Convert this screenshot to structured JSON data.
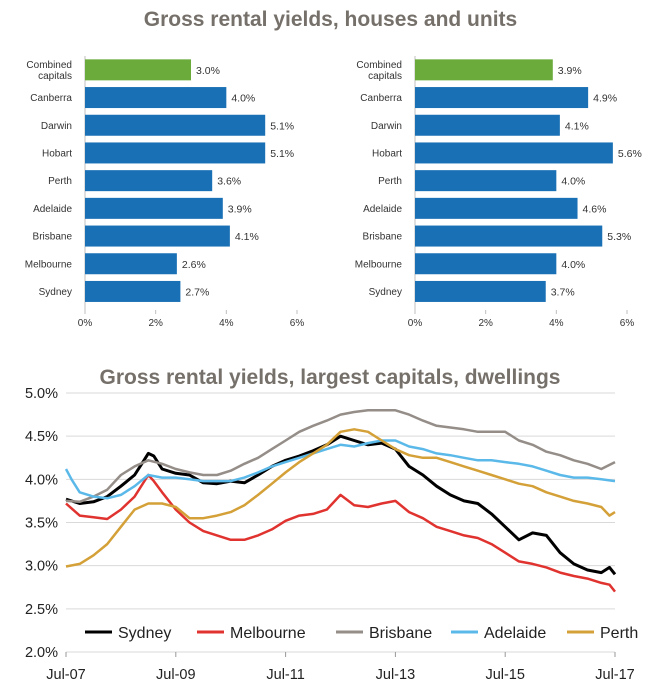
{
  "page_title": "Gross rental yields, houses and units",
  "colors": {
    "combined": "#6aab3c",
    "city": "#1a70b5",
    "grid": "#d9d9d9"
  },
  "chart_data": [
    {
      "type": "bar",
      "orientation": "horizontal",
      "panel": "houses",
      "categories": [
        "Combined capitals",
        "Canberra",
        "Darwin",
        "Hobart",
        "Perth",
        "Adelaide",
        "Brisbane",
        "Melbourne",
        "Sydney"
      ],
      "category_lines": [
        [
          "Combined",
          "capitals"
        ],
        [
          "Canberra"
        ],
        [
          "Darwin"
        ],
        [
          "Hobart"
        ],
        [
          "Perth"
        ],
        [
          "Adelaide"
        ],
        [
          "Brisbane"
        ],
        [
          "Melbourne"
        ],
        [
          "Sydney"
        ]
      ],
      "values": [
        3.0,
        4.0,
        5.1,
        5.1,
        3.6,
        3.9,
        4.1,
        2.6,
        2.7
      ],
      "value_labels": [
        "3.0%",
        "4.0%",
        "5.1%",
        "5.1%",
        "3.6%",
        "3.9%",
        "4.1%",
        "2.6%",
        "2.7%"
      ],
      "xlim": [
        0,
        6
      ],
      "x_ticks": [
        0,
        2,
        4,
        6
      ],
      "x_tick_labels": [
        "0%",
        "2%",
        "4%",
        "6%"
      ]
    },
    {
      "type": "bar",
      "orientation": "horizontal",
      "panel": "units",
      "categories": [
        "Combined capitals",
        "Canberra",
        "Darwin",
        "Hobart",
        "Perth",
        "Adelaide",
        "Brisbane",
        "Melbourne",
        "Sydney"
      ],
      "category_lines": [
        [
          "Combined",
          "capitals"
        ],
        [
          "Canberra"
        ],
        [
          "Darwin"
        ],
        [
          "Hobart"
        ],
        [
          "Perth"
        ],
        [
          "Adelaide"
        ],
        [
          "Brisbane"
        ],
        [
          "Melbourne"
        ],
        [
          "Sydney"
        ]
      ],
      "values": [
        3.9,
        4.9,
        4.1,
        5.6,
        4.0,
        4.6,
        5.3,
        4.0,
        3.7
      ],
      "value_labels": [
        "3.9%",
        "4.9%",
        "4.1%",
        "5.6%",
        "4.0%",
        "4.6%",
        "5.3%",
        "4.0%",
        "3.7%"
      ],
      "xlim": [
        0,
        6
      ],
      "x_ticks": [
        0,
        2,
        4,
        6
      ],
      "x_tick_labels": [
        "0%",
        "2%",
        "4%",
        "6%"
      ]
    },
    {
      "type": "line",
      "title": "Gross rental yields, largest capitals, dwellings",
      "x_range": [
        2007.5,
        2017.5
      ],
      "x_ticks": [
        2007.5,
        2009.5,
        2011.5,
        2013.5,
        2015.5,
        2017.5
      ],
      "x_tick_labels": [
        "Jul-07",
        "Jul-09",
        "Jul-11",
        "Jul-13",
        "Jul-15",
        "Jul-17"
      ],
      "ylim": [
        2.0,
        5.0
      ],
      "y_ticks": [
        2.0,
        2.5,
        3.0,
        3.5,
        4.0,
        4.5,
        5.0
      ],
      "y_tick_labels": [
        "2.0%",
        "2.5%",
        "3.0%",
        "3.5%",
        "4.0%",
        "4.5%",
        "5.0%"
      ],
      "series": [
        {
          "name": "Sydney",
          "color": "#000000",
          "points": [
            [
              2007.5,
              3.77
            ],
            [
              2007.75,
              3.72
            ],
            [
              2008.0,
              3.74
            ],
            [
              2008.25,
              3.8
            ],
            [
              2008.5,
              3.92
            ],
            [
              2008.75,
              4.05
            ],
            [
              2008.9,
              4.2
            ],
            [
              2009.0,
              4.3
            ],
            [
              2009.1,
              4.27
            ],
            [
              2009.25,
              4.12
            ],
            [
              2009.5,
              4.07
            ],
            [
              2009.75,
              4.05
            ],
            [
              2010.0,
              3.96
            ],
            [
              2010.25,
              3.95
            ],
            [
              2010.5,
              3.98
            ],
            [
              2010.75,
              3.96
            ],
            [
              2011.0,
              4.05
            ],
            [
              2011.25,
              4.15
            ],
            [
              2011.5,
              4.22
            ],
            [
              2011.75,
              4.27
            ],
            [
              2012.0,
              4.33
            ],
            [
              2012.25,
              4.4
            ],
            [
              2012.5,
              4.5
            ],
            [
              2012.75,
              4.45
            ],
            [
              2013.0,
              4.4
            ],
            [
              2013.25,
              4.42
            ],
            [
              2013.5,
              4.35
            ],
            [
              2013.75,
              4.15
            ],
            [
              2014.0,
              4.05
            ],
            [
              2014.25,
              3.92
            ],
            [
              2014.5,
              3.82
            ],
            [
              2014.75,
              3.75
            ],
            [
              2015.0,
              3.72
            ],
            [
              2015.25,
              3.6
            ],
            [
              2015.5,
              3.45
            ],
            [
              2015.75,
              3.3
            ],
            [
              2016.0,
              3.38
            ],
            [
              2016.25,
              3.35
            ],
            [
              2016.5,
              3.15
            ],
            [
              2016.75,
              3.02
            ],
            [
              2017.0,
              2.95
            ],
            [
              2017.25,
              2.92
            ],
            [
              2017.4,
              2.98
            ],
            [
              2017.5,
              2.9
            ]
          ]
        },
        {
          "name": "Melbourne",
          "color": "#e0332f",
          "points": [
            [
              2007.5,
              3.72
            ],
            [
              2007.75,
              3.58
            ],
            [
              2008.0,
              3.56
            ],
            [
              2008.25,
              3.54
            ],
            [
              2008.5,
              3.65
            ],
            [
              2008.75,
              3.8
            ],
            [
              2009.0,
              4.05
            ],
            [
              2009.1,
              3.98
            ],
            [
              2009.25,
              3.85
            ],
            [
              2009.5,
              3.65
            ],
            [
              2009.75,
              3.5
            ],
            [
              2010.0,
              3.4
            ],
            [
              2010.25,
              3.35
            ],
            [
              2010.5,
              3.3
            ],
            [
              2010.75,
              3.3
            ],
            [
              2011.0,
              3.35
            ],
            [
              2011.25,
              3.42
            ],
            [
              2011.5,
              3.52
            ],
            [
              2011.75,
              3.58
            ],
            [
              2012.0,
              3.6
            ],
            [
              2012.25,
              3.65
            ],
            [
              2012.5,
              3.82
            ],
            [
              2012.75,
              3.7
            ],
            [
              2013.0,
              3.68
            ],
            [
              2013.25,
              3.72
            ],
            [
              2013.5,
              3.75
            ],
            [
              2013.75,
              3.62
            ],
            [
              2014.0,
              3.55
            ],
            [
              2014.25,
              3.45
            ],
            [
              2014.5,
              3.4
            ],
            [
              2014.75,
              3.35
            ],
            [
              2015.0,
              3.32
            ],
            [
              2015.25,
              3.25
            ],
            [
              2015.5,
              3.15
            ],
            [
              2015.75,
              3.05
            ],
            [
              2016.0,
              3.02
            ],
            [
              2016.25,
              2.98
            ],
            [
              2016.5,
              2.92
            ],
            [
              2016.75,
              2.88
            ],
            [
              2017.0,
              2.85
            ],
            [
              2017.25,
              2.8
            ],
            [
              2017.4,
              2.78
            ],
            [
              2017.5,
              2.7
            ]
          ]
        },
        {
          "name": "Brisbane",
          "color": "#948d88",
          "points": [
            [
              2007.5,
              3.75
            ],
            [
              2007.75,
              3.74
            ],
            [
              2008.0,
              3.8
            ],
            [
              2008.25,
              3.88
            ],
            [
              2008.5,
              4.05
            ],
            [
              2008.75,
              4.15
            ],
            [
              2009.0,
              4.22
            ],
            [
              2009.25,
              4.18
            ],
            [
              2009.5,
              4.12
            ],
            [
              2009.75,
              4.08
            ],
            [
              2010.0,
              4.05
            ],
            [
              2010.25,
              4.05
            ],
            [
              2010.5,
              4.1
            ],
            [
              2010.75,
              4.18
            ],
            [
              2011.0,
              4.25
            ],
            [
              2011.25,
              4.35
            ],
            [
              2011.5,
              4.45
            ],
            [
              2011.75,
              4.55
            ],
            [
              2012.0,
              4.62
            ],
            [
              2012.25,
              4.68
            ],
            [
              2012.5,
              4.75
            ],
            [
              2012.75,
              4.78
            ],
            [
              2013.0,
              4.8
            ],
            [
              2013.25,
              4.8
            ],
            [
              2013.5,
              4.8
            ],
            [
              2013.75,
              4.75
            ],
            [
              2014.0,
              4.68
            ],
            [
              2014.25,
              4.62
            ],
            [
              2014.5,
              4.6
            ],
            [
              2014.75,
              4.58
            ],
            [
              2015.0,
              4.55
            ],
            [
              2015.25,
              4.55
            ],
            [
              2015.5,
              4.55
            ],
            [
              2015.75,
              4.45
            ],
            [
              2016.0,
              4.4
            ],
            [
              2016.25,
              4.32
            ],
            [
              2016.5,
              4.28
            ],
            [
              2016.75,
              4.22
            ],
            [
              2017.0,
              4.18
            ],
            [
              2017.25,
              4.12
            ],
            [
              2017.5,
              4.2
            ]
          ]
        },
        {
          "name": "Adelaide",
          "color": "#5bb9e9",
          "points": [
            [
              2007.5,
              4.12
            ],
            [
              2007.6,
              4.0
            ],
            [
              2007.75,
              3.85
            ],
            [
              2008.0,
              3.8
            ],
            [
              2008.25,
              3.78
            ],
            [
              2008.5,
              3.82
            ],
            [
              2008.75,
              3.92
            ],
            [
              2009.0,
              4.05
            ],
            [
              2009.25,
              4.02
            ],
            [
              2009.5,
              4.02
            ],
            [
              2009.75,
              4.0
            ],
            [
              2010.0,
              3.98
            ],
            [
              2010.25,
              3.98
            ],
            [
              2010.5,
              3.98
            ],
            [
              2010.75,
              4.02
            ],
            [
              2011.0,
              4.08
            ],
            [
              2011.25,
              4.15
            ],
            [
              2011.5,
              4.2
            ],
            [
              2011.75,
              4.25
            ],
            [
              2012.0,
              4.3
            ],
            [
              2012.25,
              4.35
            ],
            [
              2012.5,
              4.4
            ],
            [
              2012.75,
              4.38
            ],
            [
              2013.0,
              4.42
            ],
            [
              2013.25,
              4.45
            ],
            [
              2013.5,
              4.45
            ],
            [
              2013.75,
              4.38
            ],
            [
              2014.0,
              4.35
            ],
            [
              2014.25,
              4.3
            ],
            [
              2014.5,
              4.28
            ],
            [
              2014.75,
              4.25
            ],
            [
              2015.0,
              4.22
            ],
            [
              2015.25,
              4.22
            ],
            [
              2015.5,
              4.2
            ],
            [
              2015.75,
              4.18
            ],
            [
              2016.0,
              4.15
            ],
            [
              2016.25,
              4.1
            ],
            [
              2016.5,
              4.05
            ],
            [
              2016.75,
              4.02
            ],
            [
              2017.0,
              4.02
            ],
            [
              2017.25,
              4.0
            ],
            [
              2017.5,
              3.98
            ]
          ]
        },
        {
          "name": "Perth",
          "color": "#d4a038",
          "points": [
            [
              2007.5,
              2.99
            ],
            [
              2007.75,
              3.02
            ],
            [
              2008.0,
              3.12
            ],
            [
              2008.25,
              3.25
            ],
            [
              2008.5,
              3.45
            ],
            [
              2008.75,
              3.65
            ],
            [
              2009.0,
              3.72
            ],
            [
              2009.25,
              3.72
            ],
            [
              2009.5,
              3.68
            ],
            [
              2009.75,
              3.55
            ],
            [
              2010.0,
              3.55
            ],
            [
              2010.25,
              3.58
            ],
            [
              2010.5,
              3.62
            ],
            [
              2010.75,
              3.7
            ],
            [
              2011.0,
              3.82
            ],
            [
              2011.25,
              3.95
            ],
            [
              2011.5,
              4.08
            ],
            [
              2011.75,
              4.2
            ],
            [
              2012.0,
              4.3
            ],
            [
              2012.25,
              4.4
            ],
            [
              2012.5,
              4.55
            ],
            [
              2012.75,
              4.58
            ],
            [
              2013.0,
              4.55
            ],
            [
              2013.25,
              4.45
            ],
            [
              2013.5,
              4.35
            ],
            [
              2013.75,
              4.28
            ],
            [
              2014.0,
              4.25
            ],
            [
              2014.25,
              4.25
            ],
            [
              2014.5,
              4.2
            ],
            [
              2014.75,
              4.15
            ],
            [
              2015.0,
              4.1
            ],
            [
              2015.25,
              4.05
            ],
            [
              2015.5,
              4.0
            ],
            [
              2015.75,
              3.95
            ],
            [
              2016.0,
              3.92
            ],
            [
              2016.25,
              3.85
            ],
            [
              2016.5,
              3.8
            ],
            [
              2016.75,
              3.75
            ],
            [
              2017.0,
              3.72
            ],
            [
              2017.25,
              3.68
            ],
            [
              2017.4,
              3.58
            ],
            [
              2017.5,
              3.62
            ]
          ]
        }
      ]
    }
  ]
}
